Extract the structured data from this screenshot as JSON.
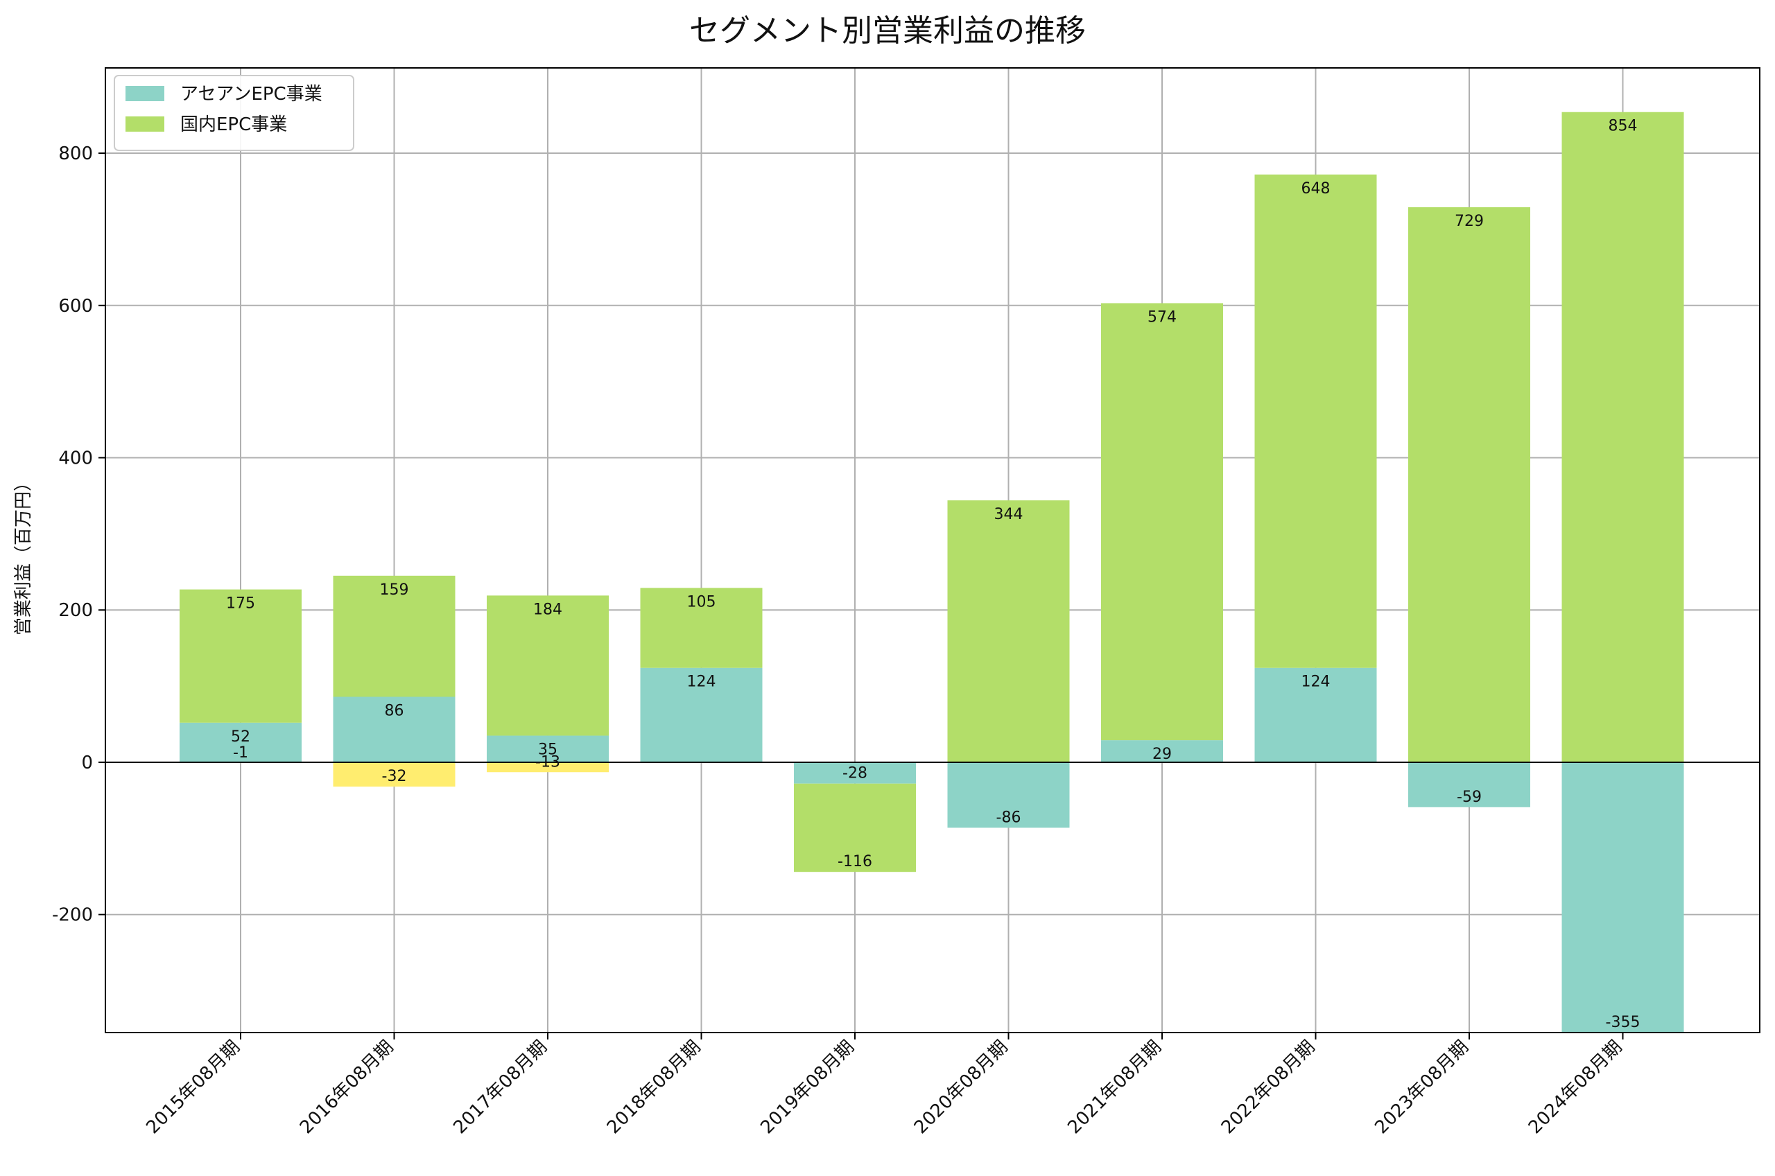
{
  "chart_data": {
    "type": "bar",
    "stacked": true,
    "title": "セグメント別営業利益の推移",
    "xlabel": "",
    "ylabel": "営業利益（百万円）",
    "ylim": [
      -355,
      912
    ],
    "yticks": [
      -200,
      0,
      200,
      400,
      600,
      800
    ],
    "grid": true,
    "legend_position": "top-left",
    "categories": [
      "2015年08月期",
      "2016年08月期",
      "2017年08月期",
      "2018年08月期",
      "2019年08月期",
      "2020年08月期",
      "2021年08月期",
      "2022年08月期",
      "2023年08月期",
      "2024年08月期"
    ],
    "series": [
      {
        "name": "アセアンEPC事業",
        "color": "#8dd3c7",
        "values": [
          52,
          86,
          35,
          124,
          -28,
          -86,
          29,
          124,
          -59,
          -355
        ]
      },
      {
        "name": "国内EPC事業",
        "color": "#b3de69",
        "values": [
          175,
          159,
          184,
          105,
          -116,
          344,
          574,
          648,
          729,
          854
        ]
      },
      {
        "name": "",
        "color": "#ffed6f",
        "values": [
          -1,
          -32,
          -13,
          null,
          null,
          null,
          null,
          null,
          null,
          null
        ]
      }
    ]
  }
}
